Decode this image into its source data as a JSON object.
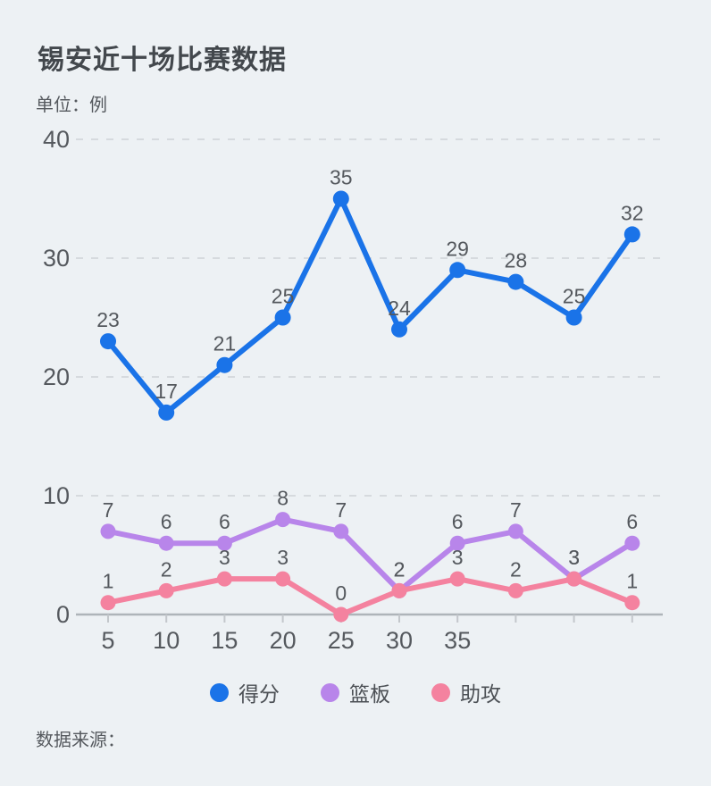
{
  "page": {
    "title": "锡安近十场比赛数据",
    "unit_label": "单位：例",
    "source_label": "数据来源："
  },
  "chart_data": {
    "type": "line",
    "x": [
      5,
      10,
      15,
      20,
      25,
      30,
      35,
      40,
      45,
      50
    ],
    "x_tick_labels": [
      "5",
      "10",
      "15",
      "20",
      "25",
      "30",
      "35",
      "",
      "",
      ""
    ],
    "series": [
      {
        "name": "得分",
        "slug": "points",
        "color": "#1a73e8",
        "values": [
          23,
          17,
          21,
          25,
          35,
          24,
          29,
          28,
          25,
          32
        ]
      },
      {
        "name": "篮板",
        "slug": "rebounds",
        "color": "#b885ea",
        "values": [
          7,
          6,
          6,
          8,
          7,
          2,
          6,
          7,
          3,
          6
        ]
      },
      {
        "name": "助攻",
        "slug": "assists",
        "color": "#f4829f",
        "values": [
          1,
          2,
          3,
          3,
          0,
          2,
          3,
          2,
          3,
          1
        ]
      }
    ],
    "title": "锡安近十场比赛数据",
    "xlabel": "",
    "ylabel": "单位：例",
    "ylim": [
      0,
      40
    ],
    "y_ticks": [
      0,
      10,
      20,
      30,
      40
    ],
    "grid": "horizontal-dashed",
    "legend_position": "bottom",
    "data_labels": true
  },
  "colors": {
    "background": "#edf1f4",
    "title_text": "#43484d",
    "gray_text": "#55595e",
    "grid_line": "#d6dade",
    "axis_line": "#aeb4b9",
    "tick_mark": "#c3c7cb",
    "point_label": "#54585d"
  }
}
